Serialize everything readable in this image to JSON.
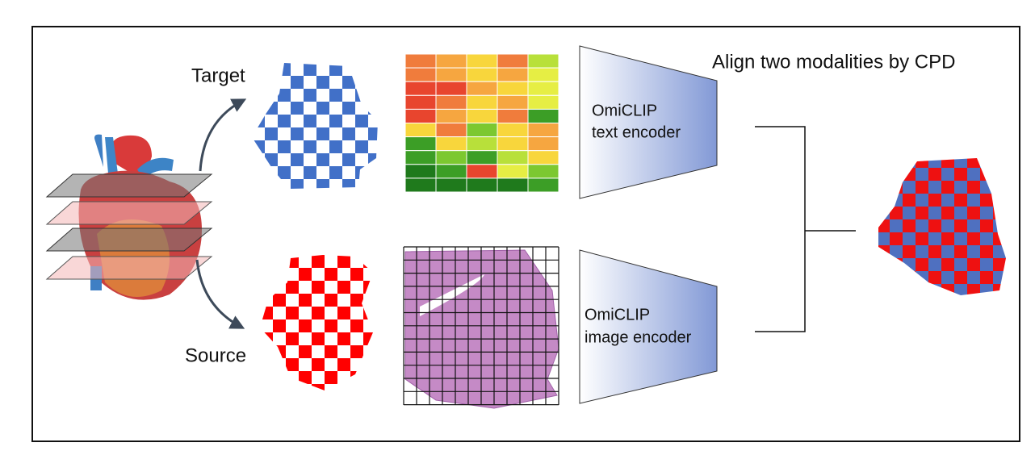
{
  "labels": {
    "title": "Align two modalities by CPD",
    "target": "Target",
    "source": "Source"
  },
  "encoders": [
    {
      "name": "OmiCLIP",
      "role": "text encoder"
    },
    {
      "name": "OmiCLIP",
      "role": "image encoder"
    }
  ]
}
